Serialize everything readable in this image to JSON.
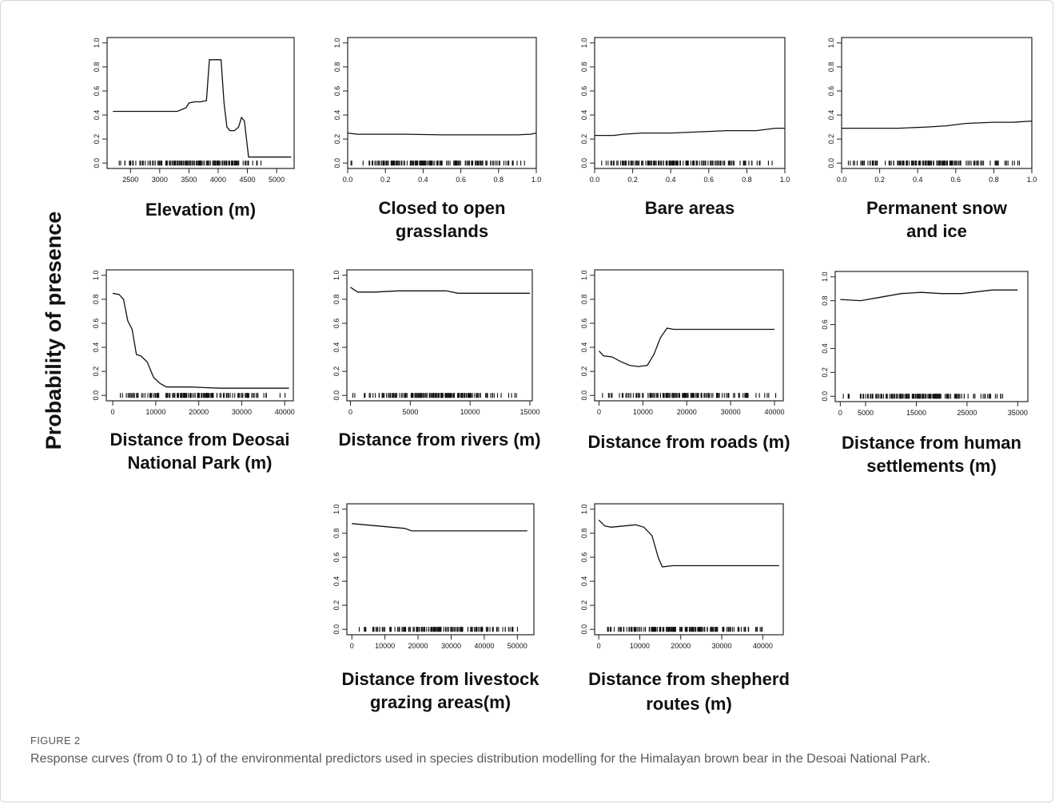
{
  "figure": {
    "label": "FIGURE 2",
    "caption": "Response curves (from 0 to 1) of the environmental predictors used in species distribution modelling for the Himalayan brown bear in the Desoai National Park.",
    "shared_ylabel": "Probability of presence"
  },
  "chart_data": [
    {
      "type": "line",
      "id": "elevation",
      "title_lines": [
        "Elevation (m)"
      ],
      "xlim": [
        2100,
        5300
      ],
      "ylim": [
        0,
        1
      ],
      "x_ticks": [
        2500,
        3000,
        3500,
        4000,
        4500,
        5000
      ],
      "y_ticks": [
        "0.0",
        "0.2",
        "0.4",
        "0.6",
        "0.8",
        "1.0"
      ],
      "x": [
        2200,
        3300,
        3450,
        3500,
        3600,
        3700,
        3800,
        3850,
        3900,
        4050,
        4100,
        4150,
        4200,
        4280,
        4350,
        4400,
        4450,
        4520,
        5250
      ],
      "y": [
        0.43,
        0.43,
        0.46,
        0.5,
        0.51,
        0.51,
        0.52,
        0.86,
        0.86,
        0.86,
        0.5,
        0.3,
        0.27,
        0.27,
        0.3,
        0.38,
        0.35,
        0.05,
        0.05
      ],
      "rug_range": [
        2200,
        5250
      ]
    },
    {
      "type": "line",
      "id": "grasslands",
      "title_lines": [
        "Closed to open",
        "grasslands"
      ],
      "xlim": [
        0,
        1
      ],
      "ylim": [
        0,
        1
      ],
      "x_ticks": [
        "0.0",
        "0.2",
        "0.4",
        "0.6",
        "0.8",
        "1.0"
      ],
      "y_ticks": [
        "0.0",
        "0.2",
        "0.4",
        "0.6",
        "0.8",
        "1.0"
      ],
      "x": [
        0,
        0.05,
        0.1,
        0.3,
        0.5,
        0.7,
        0.9,
        0.97,
        1.0
      ],
      "y": [
        0.25,
        0.24,
        0.24,
        0.24,
        0.235,
        0.235,
        0.235,
        0.24,
        0.25
      ],
      "rug_range": [
        0,
        1
      ]
    },
    {
      "type": "line",
      "id": "bare",
      "title_lines": [
        "Bare areas"
      ],
      "xlim": [
        0,
        1
      ],
      "ylim": [
        0,
        1
      ],
      "x_ticks": [
        "0.0",
        "0.2",
        "0.4",
        "0.6",
        "0.8",
        "1.0"
      ],
      "y_ticks": [
        "0.0",
        "0.2",
        "0.4",
        "0.6",
        "0.8",
        "1.0"
      ],
      "x": [
        0,
        0.1,
        0.15,
        0.25,
        0.4,
        0.55,
        0.7,
        0.85,
        0.95,
        1.0
      ],
      "y": [
        0.23,
        0.23,
        0.24,
        0.25,
        0.25,
        0.26,
        0.27,
        0.27,
        0.29,
        0.29
      ],
      "rug_range": [
        0,
        1
      ]
    },
    {
      "type": "line",
      "id": "snow",
      "title_lines": [
        "Permanent snow",
        "and ice"
      ],
      "xlim": [
        0,
        1
      ],
      "ylim": [
        0,
        1
      ],
      "x_ticks": [
        "0.0",
        "0.2",
        "0.4",
        "0.6",
        "0.8",
        "1.0"
      ],
      "y_ticks": [
        "0.0",
        "0.2",
        "0.4",
        "0.6",
        "0.8",
        "1.0"
      ],
      "x": [
        0,
        0.2,
        0.3,
        0.45,
        0.55,
        0.65,
        0.8,
        0.9,
        1.0
      ],
      "y": [
        0.29,
        0.29,
        0.29,
        0.3,
        0.31,
        0.33,
        0.34,
        0.34,
        0.35
      ],
      "rug_range": [
        0,
        1
      ]
    },
    {
      "type": "line",
      "id": "deosai",
      "title_lines": [
        "Distance from Deosai",
        "National Park (m)"
      ],
      "xlim": [
        -1500,
        42000
      ],
      "ylim": [
        0,
        1
      ],
      "x_ticks": [
        0,
        10000,
        20000,
        30000,
        40000
      ],
      "y_ticks": [
        "0.0",
        "0.2",
        "0.4",
        "0.6",
        "0.8",
        "1.0"
      ],
      "x": [
        0,
        1500,
        2500,
        3500,
        4500,
        5500,
        6500,
        8000,
        9500,
        11000,
        12500,
        18000,
        25000,
        41000
      ],
      "y": [
        0.85,
        0.84,
        0.8,
        0.62,
        0.55,
        0.34,
        0.33,
        0.28,
        0.15,
        0.1,
        0.07,
        0.07,
        0.06,
        0.06
      ],
      "rug_range": [
        0,
        41000
      ]
    },
    {
      "type": "line",
      "id": "rivers",
      "title_lines": [
        "Distance from rivers (m)"
      ],
      "xlim": [
        -300,
        15200
      ],
      "ylim": [
        0,
        1
      ],
      "x_ticks": [
        0,
        5000,
        10000,
        15000
      ],
      "y_ticks": [
        "0.0",
        "0.2",
        "0.4",
        "0.6",
        "0.8",
        "1.0"
      ],
      "x": [
        0,
        300,
        600,
        2000,
        4000,
        6000,
        8000,
        9000,
        12000,
        15000
      ],
      "y": [
        0.9,
        0.88,
        0.86,
        0.86,
        0.87,
        0.87,
        0.87,
        0.85,
        0.85,
        0.85
      ],
      "rug_range": [
        0,
        15000
      ]
    },
    {
      "type": "line",
      "id": "roads",
      "title_lines": [
        "Distance from roads (m)"
      ],
      "xlim": [
        -1000,
        42000
      ],
      "ylim": [
        0,
        1
      ],
      "x_ticks": [
        0,
        10000,
        20000,
        30000,
        40000
      ],
      "y_ticks": [
        "0.0",
        "0.2",
        "0.4",
        "0.6",
        "0.8",
        "1.0"
      ],
      "x": [
        0,
        1000,
        3000,
        5000,
        7000,
        9000,
        11000,
        12500,
        14000,
        15500,
        17000,
        20000,
        40000
      ],
      "y": [
        0.37,
        0.33,
        0.32,
        0.28,
        0.25,
        0.24,
        0.25,
        0.34,
        0.48,
        0.56,
        0.55,
        0.55,
        0.55
      ],
      "rug_range": [
        0,
        41000
      ]
    },
    {
      "type": "line",
      "id": "settlements",
      "title_lines": [
        "Distance from  human",
        "settlements (m)"
      ],
      "xlim": [
        -1000,
        37000
      ],
      "ylim": [
        0,
        1
      ],
      "x_ticks": [
        0,
        5000,
        15000,
        25000,
        35000
      ],
      "y_ticks": [
        "0.0",
        "0.2",
        "0.4",
        "0.6",
        "0.8",
        "1.0"
      ],
      "x": [
        0,
        4000,
        8000,
        12000,
        16000,
        20000,
        24000,
        28000,
        30000,
        35000
      ],
      "y": [
        0.81,
        0.8,
        0.83,
        0.86,
        0.87,
        0.86,
        0.86,
        0.88,
        0.89,
        0.89
      ],
      "rug_range": [
        0,
        35000
      ]
    },
    {
      "type": "line",
      "id": "livestock",
      "title_lines": [
        "Distance from  livestock",
        "grazing areas(m)"
      ],
      "xlim": [
        -1500,
        55000
      ],
      "ylim": [
        0,
        1
      ],
      "x_ticks": [
        0,
        10000,
        20000,
        30000,
        40000,
        50000
      ],
      "y_ticks": [
        "0.0",
        "0.2",
        "0.4",
        "0.6",
        "0.8",
        "1.0"
      ],
      "x": [
        0,
        4000,
        8000,
        12000,
        16000,
        18000,
        25000,
        35000,
        45000,
        53000
      ],
      "y": [
        0.88,
        0.87,
        0.86,
        0.85,
        0.84,
        0.82,
        0.82,
        0.82,
        0.82,
        0.82
      ],
      "rug_range": [
        0,
        54000
      ]
    },
    {
      "type": "line",
      "id": "shepherd",
      "title_lines": [
        "Distance from  shepherd",
        "routes (m)"
      ],
      "xlim": [
        -1000,
        45000
      ],
      "ylim": [
        0,
        1
      ],
      "x_ticks": [
        0,
        10000,
        20000,
        30000,
        40000
      ],
      "y_ticks": [
        "0.0",
        "0.2",
        "0.4",
        "0.6",
        "0.8",
        "1.0"
      ],
      "x": [
        0,
        1500,
        3000,
        6000,
        9000,
        11000,
        13000,
        14500,
        15500,
        18000,
        30000,
        44000
      ],
      "y": [
        0.91,
        0.86,
        0.85,
        0.86,
        0.87,
        0.85,
        0.78,
        0.6,
        0.52,
        0.53,
        0.53,
        0.53
      ],
      "rug_range": [
        0,
        44000
      ]
    }
  ]
}
